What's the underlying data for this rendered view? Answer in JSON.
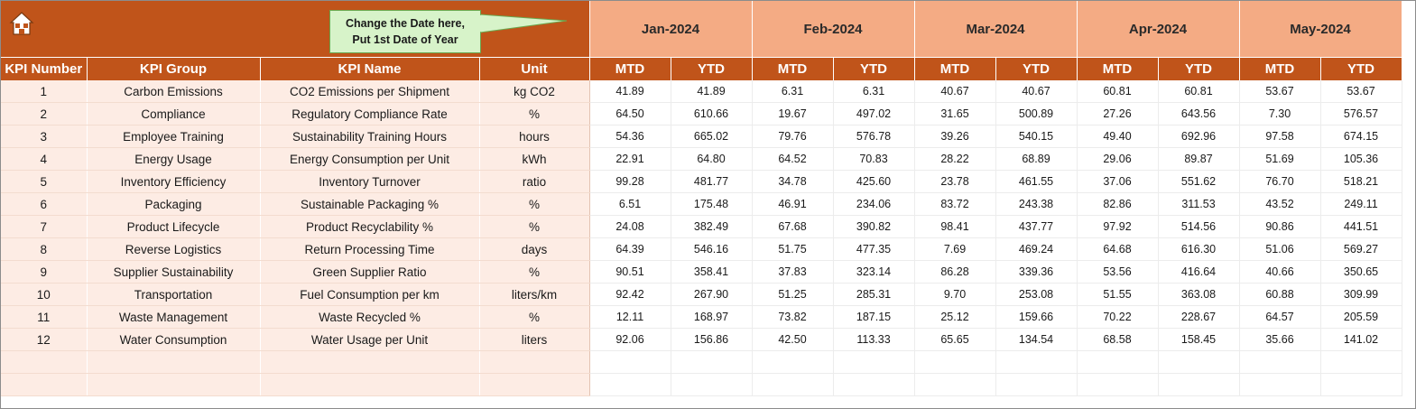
{
  "banner": {
    "home_icon": "home-icon",
    "callout_line1": "Change the Date here,",
    "callout_line2": "Put 1st Date of Year"
  },
  "months": [
    "Jan-2024",
    "Feb-2024",
    "Mar-2024",
    "Apr-2024",
    "May-2024"
  ],
  "columns": {
    "kpi_number": "KPI Number",
    "kpi_group": "KPI Group",
    "kpi_name": "KPI Name",
    "unit": "Unit",
    "mtd": "MTD",
    "ytd": "YTD"
  },
  "rows": [
    {
      "num": "1",
      "group": "Carbon Emissions",
      "name": "CO2 Emissions per Shipment",
      "unit": "kg CO2",
      "values": [
        "41.89",
        "41.89",
        "6.31",
        "6.31",
        "40.67",
        "40.67",
        "60.81",
        "60.81",
        "53.67",
        "53.67"
      ]
    },
    {
      "num": "2",
      "group": "Compliance",
      "name": "Regulatory Compliance Rate",
      "unit": "%",
      "values": [
        "64.50",
        "610.66",
        "19.67",
        "497.02",
        "31.65",
        "500.89",
        "27.26",
        "643.56",
        "7.30",
        "576.57"
      ]
    },
    {
      "num": "3",
      "group": "Employee Training",
      "name": "Sustainability Training Hours",
      "unit": "hours",
      "values": [
        "54.36",
        "665.02",
        "79.76",
        "576.78",
        "39.26",
        "540.15",
        "49.40",
        "692.96",
        "97.58",
        "674.15"
      ]
    },
    {
      "num": "4",
      "group": "Energy Usage",
      "name": "Energy Consumption per Unit",
      "unit": "kWh",
      "values": [
        "22.91",
        "64.80",
        "64.52",
        "70.83",
        "28.22",
        "68.89",
        "29.06",
        "89.87",
        "51.69",
        "105.36"
      ]
    },
    {
      "num": "5",
      "group": "Inventory Efficiency",
      "name": "Inventory Turnover",
      "unit": "ratio",
      "values": [
        "99.28",
        "481.77",
        "34.78",
        "425.60",
        "23.78",
        "461.55",
        "37.06",
        "551.62",
        "76.70",
        "518.21"
      ]
    },
    {
      "num": "6",
      "group": "Packaging",
      "name": "Sustainable Packaging %",
      "unit": "%",
      "values": [
        "6.51",
        "175.48",
        "46.91",
        "234.06",
        "83.72",
        "243.38",
        "82.86",
        "311.53",
        "43.52",
        "249.11"
      ]
    },
    {
      "num": "7",
      "group": "Product Lifecycle",
      "name": "Product Recyclability %",
      "unit": "%",
      "values": [
        "24.08",
        "382.49",
        "67.68",
        "390.82",
        "98.41",
        "437.77",
        "97.92",
        "514.56",
        "90.86",
        "441.51"
      ]
    },
    {
      "num": "8",
      "group": "Reverse Logistics",
      "name": "Return Processing Time",
      "unit": "days",
      "values": [
        "64.39",
        "546.16",
        "51.75",
        "477.35",
        "7.69",
        "469.24",
        "64.68",
        "616.30",
        "51.06",
        "569.27"
      ]
    },
    {
      "num": "9",
      "group": "Supplier Sustainability",
      "name": "Green Supplier Ratio",
      "unit": "%",
      "values": [
        "90.51",
        "358.41",
        "37.83",
        "323.14",
        "86.28",
        "339.36",
        "53.56",
        "416.64",
        "40.66",
        "350.65"
      ]
    },
    {
      "num": "10",
      "group": "Transportation",
      "name": "Fuel Consumption per km",
      "unit": "liters/km",
      "values": [
        "92.42",
        "267.90",
        "51.25",
        "285.31",
        "9.70",
        "253.08",
        "51.55",
        "363.08",
        "60.88",
        "309.99"
      ]
    },
    {
      "num": "11",
      "group": "Waste Management",
      "name": "Waste Recycled %",
      "unit": "%",
      "values": [
        "12.11",
        "168.97",
        "73.82",
        "187.15",
        "25.12",
        "159.66",
        "70.22",
        "228.67",
        "64.57",
        "205.59"
      ]
    },
    {
      "num": "12",
      "group": "Water Consumption",
      "name": "Water Usage per Unit",
      "unit": "liters",
      "values": [
        "92.06",
        "156.86",
        "42.50",
        "113.33",
        "65.65",
        "134.54",
        "68.58",
        "158.45",
        "35.66",
        "141.02"
      ]
    }
  ],
  "empty_rows": 2
}
